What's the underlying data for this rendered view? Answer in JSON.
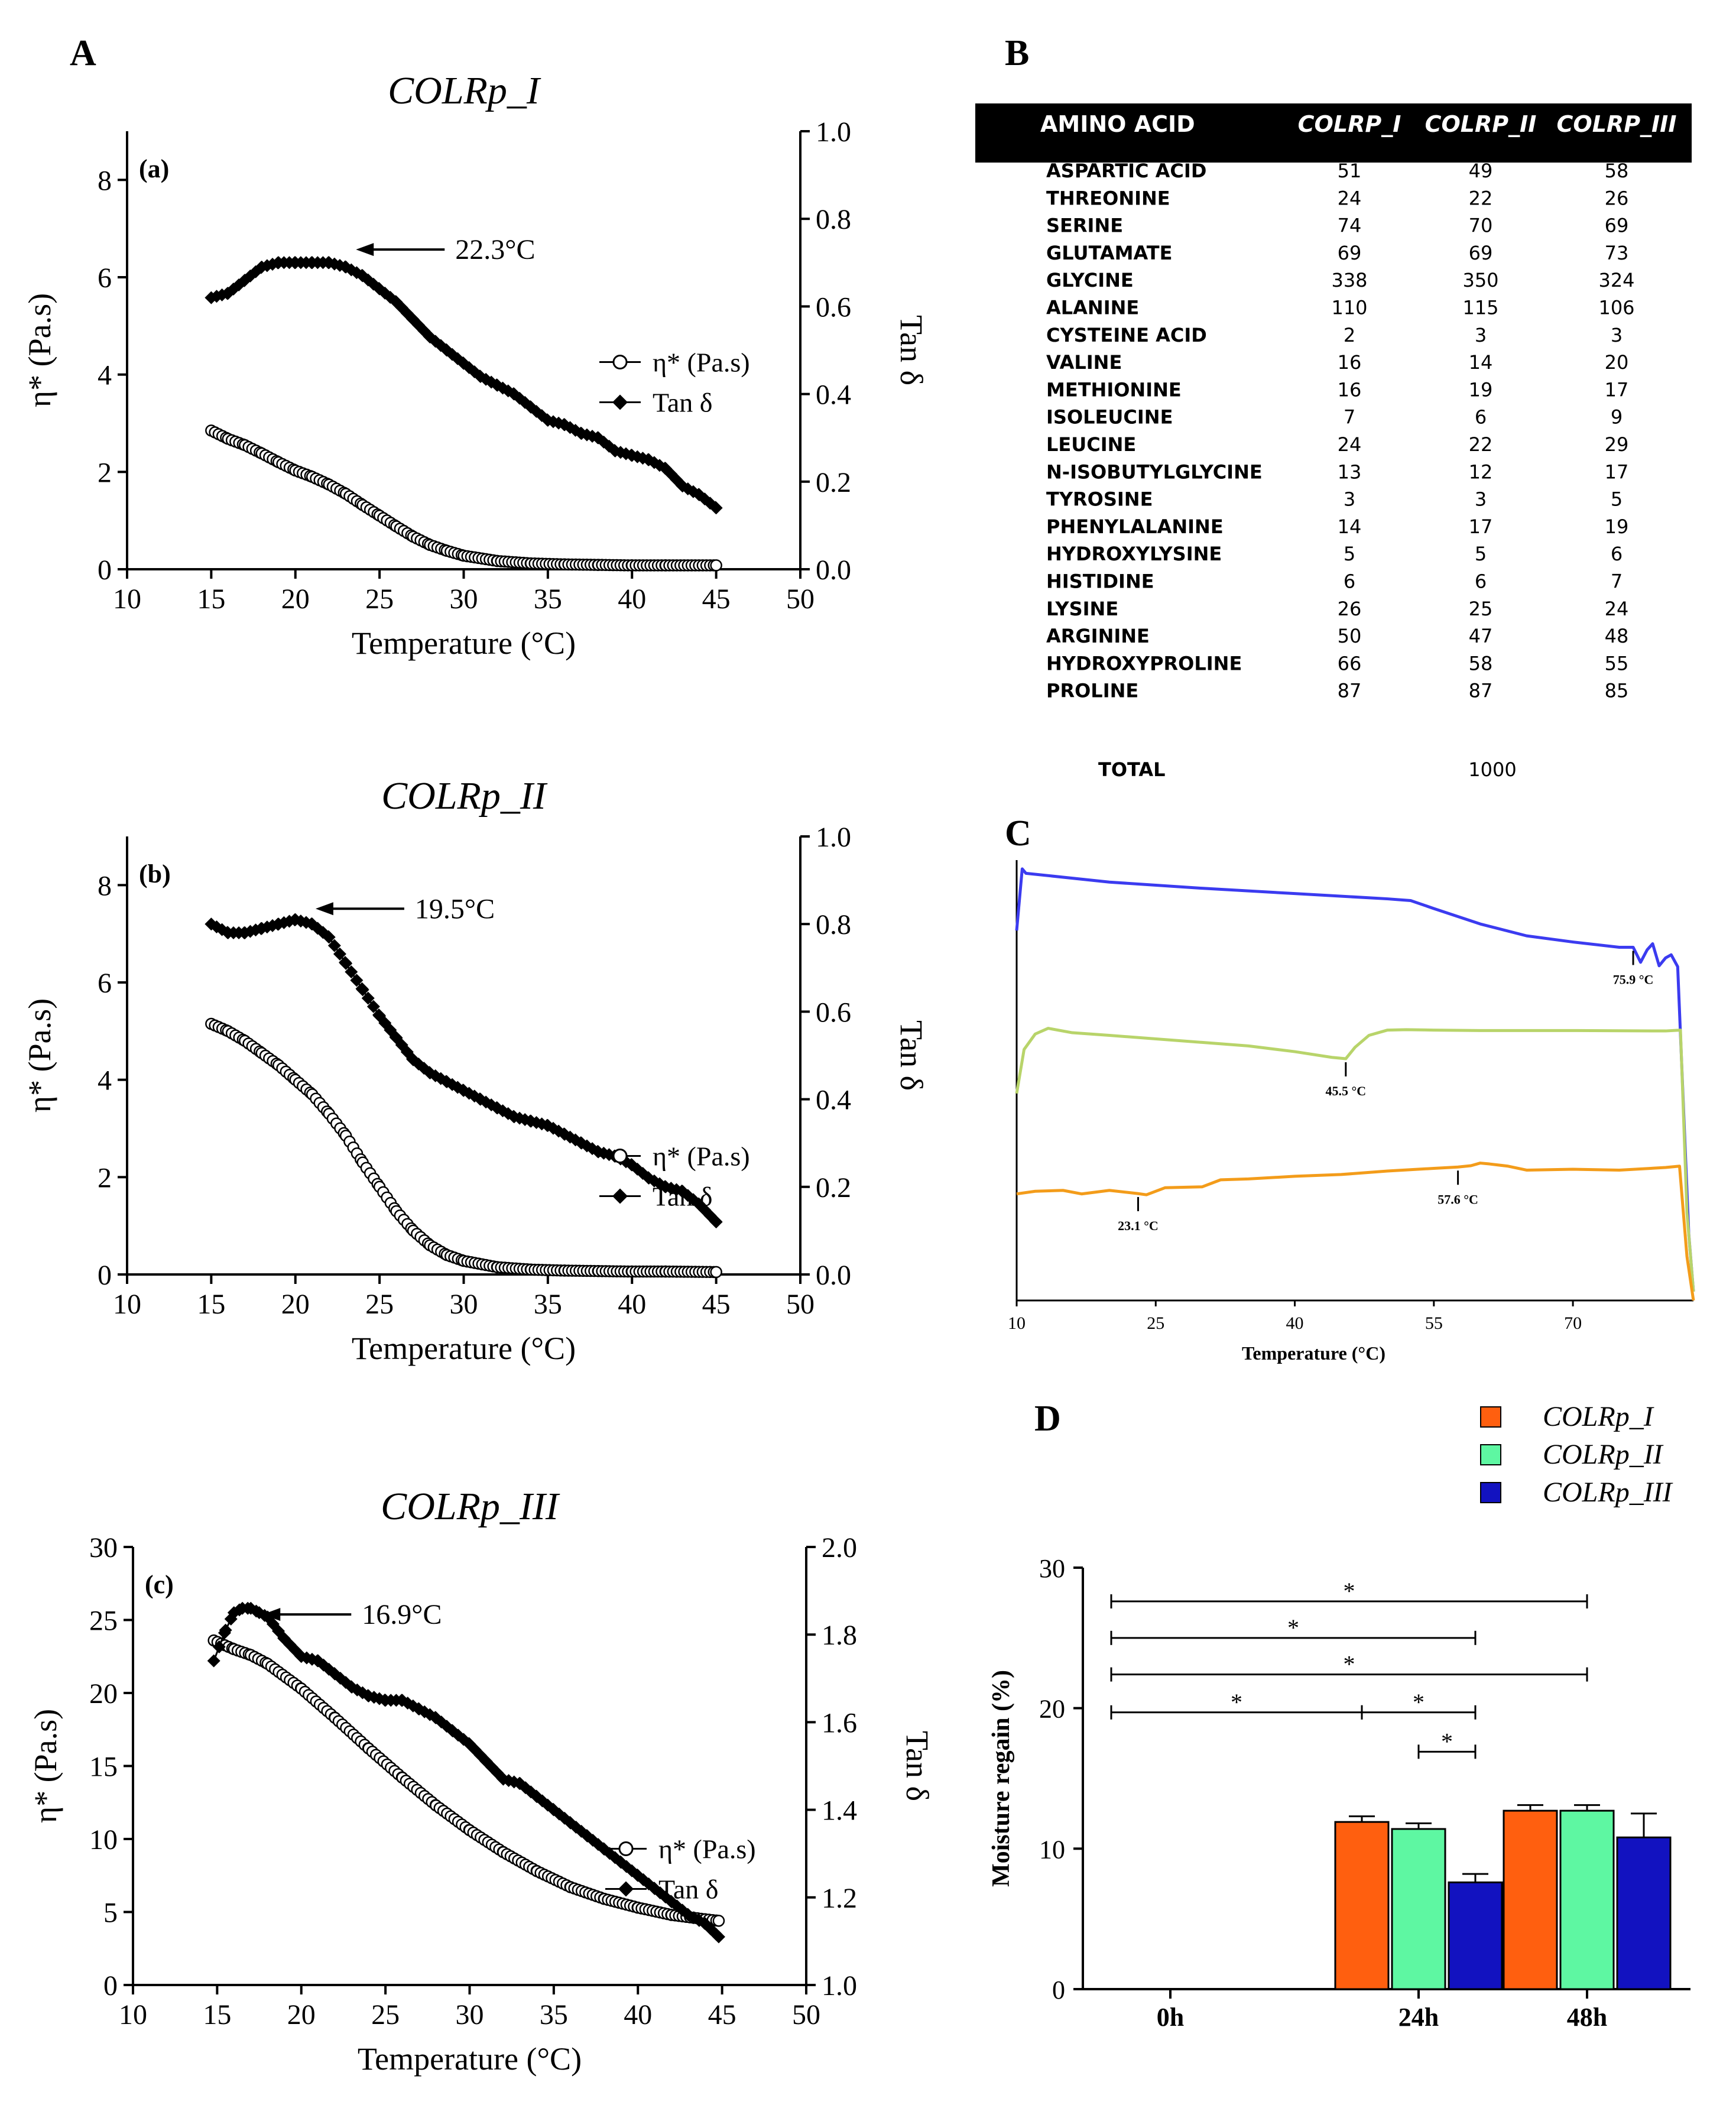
{
  "panel_labels": {
    "A": "A",
    "B": "B",
    "C": "C",
    "D": "D"
  },
  "chart_data": [
    {
      "id": "rheo_I",
      "type": "line",
      "title": "COLRp_I",
      "subplot_label": "(a)",
      "xlabel": "Temperature (°C)",
      "ylabel_left": "η* (Pa.s)",
      "ylabel_right": "Tan δ",
      "xlim": [
        10,
        50
      ],
      "ylim_left": [
        0,
        9
      ],
      "ylim_right": [
        0,
        1.0
      ],
      "xticks": [
        10,
        15,
        20,
        25,
        30,
        35,
        40,
        45,
        50
      ],
      "yticks_left": [
        0,
        2,
        4,
        6,
        8
      ],
      "yticks_right": [
        0.0,
        0.2,
        0.4,
        0.6,
        0.8,
        1.0
      ],
      "yticks_right_labels": [
        "0.0",
        "0.2",
        "0.4",
        "0.6",
        "0.8",
        "1.0"
      ],
      "annotation": "22.3°C",
      "annotation_x": 23.6,
      "annotation_y": 0.73,
      "legend": [
        "η* (Pa.s)",
        "Tan δ"
      ],
      "series": [
        {
          "name": "η* (Pa.s)",
          "axis": "left",
          "marker": "open-circle",
          "x": [
            15,
            16,
            17,
            18,
            19,
            20,
            21,
            22,
            23,
            24,
            25,
            26,
            27,
            28,
            29,
            30,
            32,
            34,
            36,
            38,
            40,
            42,
            45
          ],
          "y": [
            2.85,
            2.68,
            2.55,
            2.38,
            2.2,
            2.03,
            1.9,
            1.74,
            1.55,
            1.32,
            1.1,
            0.88,
            0.67,
            0.5,
            0.38,
            0.28,
            0.17,
            0.12,
            0.1,
            0.09,
            0.08,
            0.08,
            0.08
          ]
        },
        {
          "name": "Tan δ",
          "axis": "right",
          "marker": "filled-diamond",
          "x": [
            15,
            16,
            17,
            18,
            19,
            20,
            21,
            22,
            23,
            24,
            25,
            26,
            27,
            28,
            29,
            30,
            31,
            32,
            33,
            34,
            35,
            36,
            37,
            38,
            39,
            40,
            41,
            42,
            43,
            44,
            45
          ],
          "y": [
            0.62,
            0.63,
            0.66,
            0.69,
            0.7,
            0.7,
            0.7,
            0.7,
            0.69,
            0.67,
            0.64,
            0.61,
            0.57,
            0.53,
            0.5,
            0.47,
            0.44,
            0.42,
            0.4,
            0.37,
            0.34,
            0.33,
            0.31,
            0.3,
            0.27,
            0.26,
            0.25,
            0.23,
            0.19,
            0.17,
            0.14
          ]
        }
      ]
    },
    {
      "id": "rheo_II",
      "type": "line",
      "title": "COLRp_II",
      "subplot_label": "(b)",
      "xlabel": "Temperature (°C)",
      "ylabel_left": "η* (Pa.s)",
      "ylabel_right": "Tan δ",
      "xlim": [
        10,
        50
      ],
      "ylim_left": [
        0,
        9
      ],
      "ylim_right": [
        0,
        1.0
      ],
      "xticks": [
        10,
        15,
        20,
        25,
        30,
        35,
        40,
        45,
        50
      ],
      "yticks_left": [
        0,
        2,
        4,
        6,
        8
      ],
      "yticks_right": [
        0.0,
        0.2,
        0.4,
        0.6,
        0.8,
        1.0
      ],
      "yticks_right_labels": [
        "0.0",
        "0.2",
        "0.4",
        "0.6",
        "0.8",
        "1.0"
      ],
      "annotation": "19.5°C",
      "annotation_x": 21.2,
      "annotation_y": 0.835,
      "legend": [
        "η* (Pa.s)",
        "Tan δ"
      ],
      "series": [
        {
          "name": "η* (Pa.s)",
          "axis": "left",
          "marker": "open-circle",
          "x": [
            15,
            16,
            17,
            18,
            19,
            20,
            21,
            22,
            23,
            24,
            25,
            26,
            27,
            28,
            29,
            30,
            32,
            34,
            36,
            38,
            40,
            42,
            45
          ],
          "y": [
            5.15,
            5.0,
            4.8,
            4.55,
            4.3,
            4.0,
            3.7,
            3.3,
            2.85,
            2.3,
            1.8,
            1.3,
            0.9,
            0.6,
            0.4,
            0.28,
            0.15,
            0.1,
            0.08,
            0.07,
            0.06,
            0.06,
            0.05
          ]
        },
        {
          "name": "Tan δ",
          "axis": "right",
          "marker": "filled-diamond",
          "x": [
            15,
            16,
            17,
            18,
            19,
            20,
            21,
            22,
            23,
            24,
            25,
            26,
            27,
            28,
            29,
            30,
            31,
            32,
            33,
            34,
            35,
            36,
            37,
            38,
            39,
            40,
            41,
            42,
            43,
            44,
            45
          ],
          "y": [
            0.8,
            0.78,
            0.78,
            0.79,
            0.8,
            0.81,
            0.8,
            0.77,
            0.71,
            0.65,
            0.59,
            0.54,
            0.49,
            0.46,
            0.44,
            0.42,
            0.4,
            0.38,
            0.36,
            0.35,
            0.34,
            0.32,
            0.3,
            0.28,
            0.27,
            0.25,
            0.22,
            0.2,
            0.19,
            0.16,
            0.12
          ]
        }
      ]
    },
    {
      "id": "rheo_III",
      "type": "line",
      "title": "COLRp_III",
      "subplot_label": "(c)",
      "xlabel": "Temperature (°C)",
      "ylabel_left": "η* (Pa.s)",
      "ylabel_right": "Tan δ",
      "xlim": [
        10,
        50
      ],
      "ylim_left": [
        0,
        30
      ],
      "ylim_right": [
        1.0,
        2.0
      ],
      "xticks": [
        10,
        15,
        20,
        25,
        30,
        35,
        40,
        45,
        50
      ],
      "yticks_left": [
        0,
        5,
        10,
        15,
        20,
        25,
        30
      ],
      "yticks_right": [
        1.0,
        1.2,
        1.4,
        1.6,
        1.8,
        2.0
      ],
      "yticks_right_labels": [
        "1.0",
        "1.2",
        "1.4",
        "1.6",
        "1.8",
        "2.0"
      ],
      "annotation": "16.9°C",
      "annotation_x": 17.7,
      "annotation_y": 1.846,
      "legend": [
        "η* (Pa.s)",
        "Tan δ"
      ],
      "series": [
        {
          "name": "η* (Pa.s)",
          "axis": "left",
          "marker": "open-circle",
          "x": [
            14.8,
            16,
            17,
            18,
            20,
            22,
            24,
            26,
            28,
            30,
            32,
            34,
            36,
            38,
            40,
            42,
            44,
            44.8
          ],
          "y": [
            23.6,
            23.0,
            22.6,
            22.0,
            20.3,
            18.3,
            16.2,
            14.2,
            12.3,
            10.6,
            9.1,
            7.8,
            6.7,
            5.9,
            5.3,
            4.8,
            4.5,
            4.4
          ]
        },
        {
          "name": "Tan δ",
          "axis": "right",
          "marker": "filled-diamond",
          "x": [
            14.8,
            15.5,
            16,
            16.5,
            17,
            17.5,
            18,
            19,
            20,
            21,
            22,
            23,
            24,
            25,
            26,
            27,
            28,
            29,
            30,
            31,
            32,
            33,
            34,
            35,
            36,
            37,
            38,
            39,
            40,
            41,
            42,
            43,
            44,
            44.8
          ],
          "y": [
            1.74,
            1.81,
            1.85,
            1.86,
            1.86,
            1.85,
            1.84,
            1.79,
            1.75,
            1.74,
            1.71,
            1.68,
            1.66,
            1.65,
            1.65,
            1.63,
            1.61,
            1.58,
            1.55,
            1.51,
            1.47,
            1.46,
            1.43,
            1.4,
            1.37,
            1.34,
            1.31,
            1.28,
            1.25,
            1.22,
            1.19,
            1.16,
            1.14,
            1.11
          ]
        }
      ]
    },
    {
      "id": "amino_table",
      "type": "table",
      "columns": [
        "AMINO ACID",
        "COLRP_I",
        "COLRP_II",
        "COLRP_III"
      ],
      "rows": [
        [
          "ASPARTIC ACID",
          "51",
          "49",
          "58"
        ],
        [
          "THREONINE",
          "24",
          "22",
          "26"
        ],
        [
          "SERINE",
          "74",
          "70",
          "69"
        ],
        [
          "GLUTAMATE",
          "69",
          "69",
          "73"
        ],
        [
          "GLYCINE",
          "338",
          "350",
          "324"
        ],
        [
          "ALANINE",
          "110",
          "115",
          "106"
        ],
        [
          "CYSTEINE ACID",
          "2",
          "3",
          "3"
        ],
        [
          "VALINE",
          "16",
          "14",
          "20"
        ],
        [
          "METHIONINE",
          "16",
          "19",
          "17"
        ],
        [
          "ISOLEUCINE",
          "7",
          "6",
          "9"
        ],
        [
          "LEUCINE",
          "24",
          "22",
          "29"
        ],
        [
          "N-ISOBUTYLGLYCINE",
          "13",
          "12",
          "17"
        ],
        [
          "TYROSINE",
          "3",
          "3",
          "5"
        ],
        [
          "PHENYLALANINE",
          "14",
          "17",
          "19"
        ],
        [
          "HYDROXYLYSINE",
          "5",
          "5",
          "6"
        ],
        [
          "HISTIDINE",
          "6",
          "6",
          "7"
        ],
        [
          "LYSINE",
          "26",
          "25",
          "24"
        ],
        [
          "ARGININE",
          "50",
          "47",
          "48"
        ],
        [
          "HYDROXYPROLINE",
          "66",
          "58",
          "55"
        ],
        [
          "PROLINE",
          "87",
          "87",
          "85"
        ]
      ],
      "total_label": "TOTAL",
      "total_value": "1000"
    },
    {
      "id": "dsc",
      "type": "line",
      "xlabel": "Temperature (°C)",
      "xlim": [
        10,
        83
      ],
      "xticks": [
        10,
        25,
        40,
        55,
        70
      ],
      "y_range": [
        0,
        100
      ],
      "series": [
        {
          "name": "blue",
          "color": "#3b3bf0",
          "x": [
            10,
            10.6,
            11,
            20,
            30,
            40,
            50,
            52.5,
            55,
            60,
            65,
            70,
            75,
            76.5,
            77.3,
            78,
            78.6,
            79.3,
            80,
            80.6,
            81.3,
            82,
            82.5,
            83
          ],
          "y": [
            84,
            98,
            97,
            95,
            93.6,
            92.4,
            91.2,
            90.8,
            89,
            85.5,
            82.8,
            81.4,
            80.2,
            80.2,
            76.8,
            79.6,
            81.0,
            76.0,
            77.8,
            78.5,
            75.8,
            40,
            15,
            2
          ]
        },
        {
          "name": "green",
          "color": "#b8d46a",
          "x": [
            10,
            10.8,
            12,
            13.4,
            16,
            20,
            30,
            35,
            40,
            44,
            45.5,
            46.5,
            48,
            50,
            52,
            55,
            60,
            70,
            80,
            81.6,
            82.3,
            83
          ],
          "y": [
            47,
            57,
            60.5,
            61.8,
            60.8,
            60.2,
            58.6,
            57.8,
            56.5,
            55.2,
            54.9,
            57.5,
            60.2,
            61.4,
            61.5,
            61.4,
            61.3,
            61.3,
            61.2,
            61.4,
            20,
            2
          ]
        },
        {
          "name": "orange",
          "color": "#f39c1a",
          "x": [
            10,
            12,
            15,
            17,
            20,
            23,
            24,
            26,
            30,
            32,
            35,
            40,
            45,
            50,
            55,
            57.6,
            59,
            60,
            61,
            63,
            65,
            70,
            75,
            80,
            81.5,
            82.3,
            83
          ],
          "y": [
            24.2,
            24.8,
            25.0,
            24.2,
            25.0,
            24.3,
            24.0,
            25.6,
            25.8,
            27.4,
            27.6,
            28.2,
            28.6,
            29.4,
            30.0,
            30.3,
            30.6,
            31.2,
            31.0,
            30.5,
            29.6,
            29.8,
            29.6,
            30.2,
            30.5,
            10,
            0
          ]
        }
      ],
      "annotations": [
        {
          "text": "75.9 °C",
          "x": 76.5,
          "y": 80.2
        },
        {
          "text": "45.5 °C",
          "x": 45.5,
          "y": 54.9
        },
        {
          "text": "23.1 °C",
          "x": 23.1,
          "y": 24.3
        },
        {
          "text": "57.6 °C",
          "x": 57.6,
          "y": 30.3
        }
      ]
    },
    {
      "id": "moisture",
      "type": "bar",
      "categories": [
        "0h",
        "24h",
        "48h"
      ],
      "ylabel": "Moisture regain (%)",
      "ylim": [
        0,
        30
      ],
      "yticks": [
        0,
        10,
        20,
        30
      ],
      "series": [
        {
          "name": "COLRp_I",
          "color": "#ff5f0f",
          "values": [
            0,
            11.9,
            12.7
          ],
          "errors": [
            0,
            0.4,
            0.4
          ]
        },
        {
          "name": "COLRp_II",
          "color": "#5ef7a2",
          "values": [
            0,
            11.4,
            12.7
          ],
          "errors": [
            0,
            0.4,
            0.4
          ]
        },
        {
          "name": "COLRp_III",
          "color": "#1212c0",
          "values": [
            0,
            7.6,
            10.8
          ],
          "errors": [
            0,
            0.6,
            1.7
          ]
        }
      ],
      "significance": [
        {
          "label": "*",
          "from_cat": 0,
          "from_series": 0,
          "to_cat": 2,
          "to_series": 1,
          "y": 27.6
        },
        {
          "label": "*",
          "from_cat": 0,
          "from_series": 0,
          "to_cat": 1,
          "to_series": 2,
          "y": 25.0
        },
        {
          "label": "*",
          "from_cat": 0,
          "from_series": 0,
          "to_cat": 2,
          "to_series": 1,
          "y": 22.4
        },
        {
          "label": "*",
          "from_cat": 0,
          "from_series": 0,
          "to_cat": 1,
          "to_series": 0,
          "y": 19.7
        },
        {
          "label": "*",
          "from_cat": 1,
          "from_series": 0,
          "to_cat": 1,
          "to_series": 2,
          "y": 19.7
        },
        {
          "label": "*",
          "from_cat": 1,
          "from_series": 1,
          "to_cat": 1,
          "to_series": 2,
          "y": 16.9
        }
      ]
    }
  ]
}
